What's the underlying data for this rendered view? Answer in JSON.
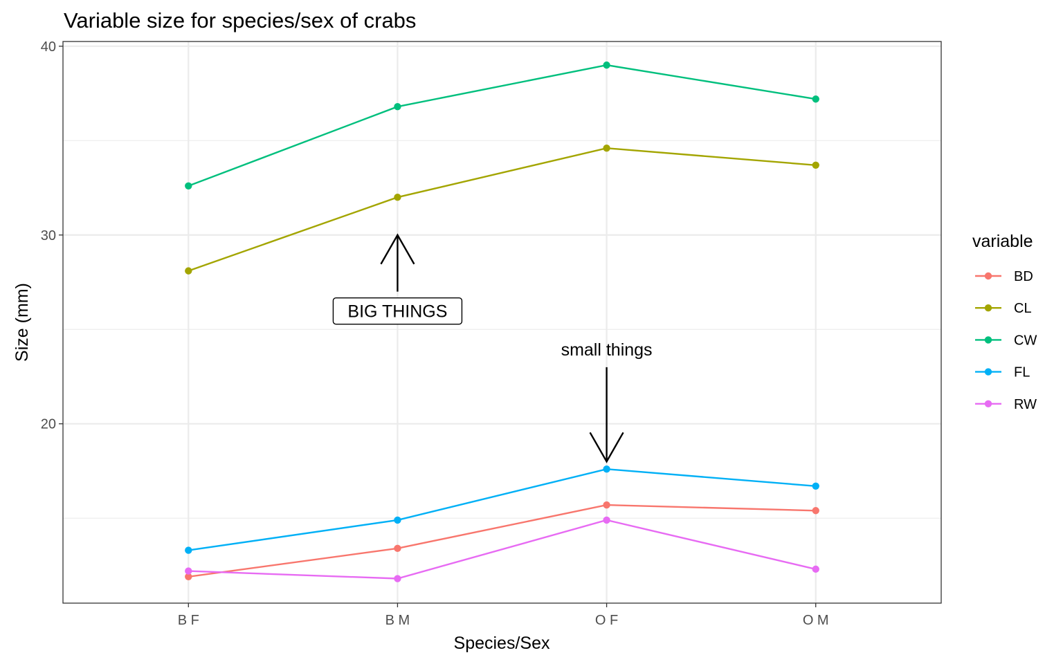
{
  "chart_data": {
    "type": "line",
    "title": "Variable size for species/sex of crabs",
    "xlabel": "Species/Sex",
    "ylabel": "Size (mm)",
    "categories": [
      "B F",
      "B M",
      "O F",
      "O M"
    ],
    "ylim": [
      10.5,
      40.25
    ],
    "yticks": [
      20,
      30,
      40
    ],
    "grid": true,
    "legend": {
      "title": "variable",
      "position": "right"
    },
    "series": [
      {
        "name": "BD",
        "color": "#F8766D",
        "values": [
          11.9,
          13.4,
          15.7,
          15.4
        ]
      },
      {
        "name": "CL",
        "color": "#A3A500",
        "values": [
          28.1,
          32.0,
          34.6,
          33.7
        ]
      },
      {
        "name": "CW",
        "color": "#00BF7D",
        "values": [
          32.6,
          36.8,
          39.0,
          37.2
        ]
      },
      {
        "name": "FL",
        "color": "#00B0F6",
        "values": [
          13.3,
          14.9,
          17.6,
          16.7
        ]
      },
      {
        "name": "RW",
        "color": "#E76BF3",
        "values": [
          12.2,
          11.8,
          14.9,
          12.3
        ]
      }
    ],
    "annotations": [
      {
        "text": "BIG THINGS",
        "boxed": true,
        "arrow": "up",
        "x": "B M",
        "arrow_tip_y": 30,
        "arrow_tail_y": 27
      },
      {
        "text": "small things",
        "boxed": false,
        "arrow": "down",
        "x": "O F",
        "arrow_tip_y": 18,
        "arrow_tail_y": 23
      }
    ]
  }
}
